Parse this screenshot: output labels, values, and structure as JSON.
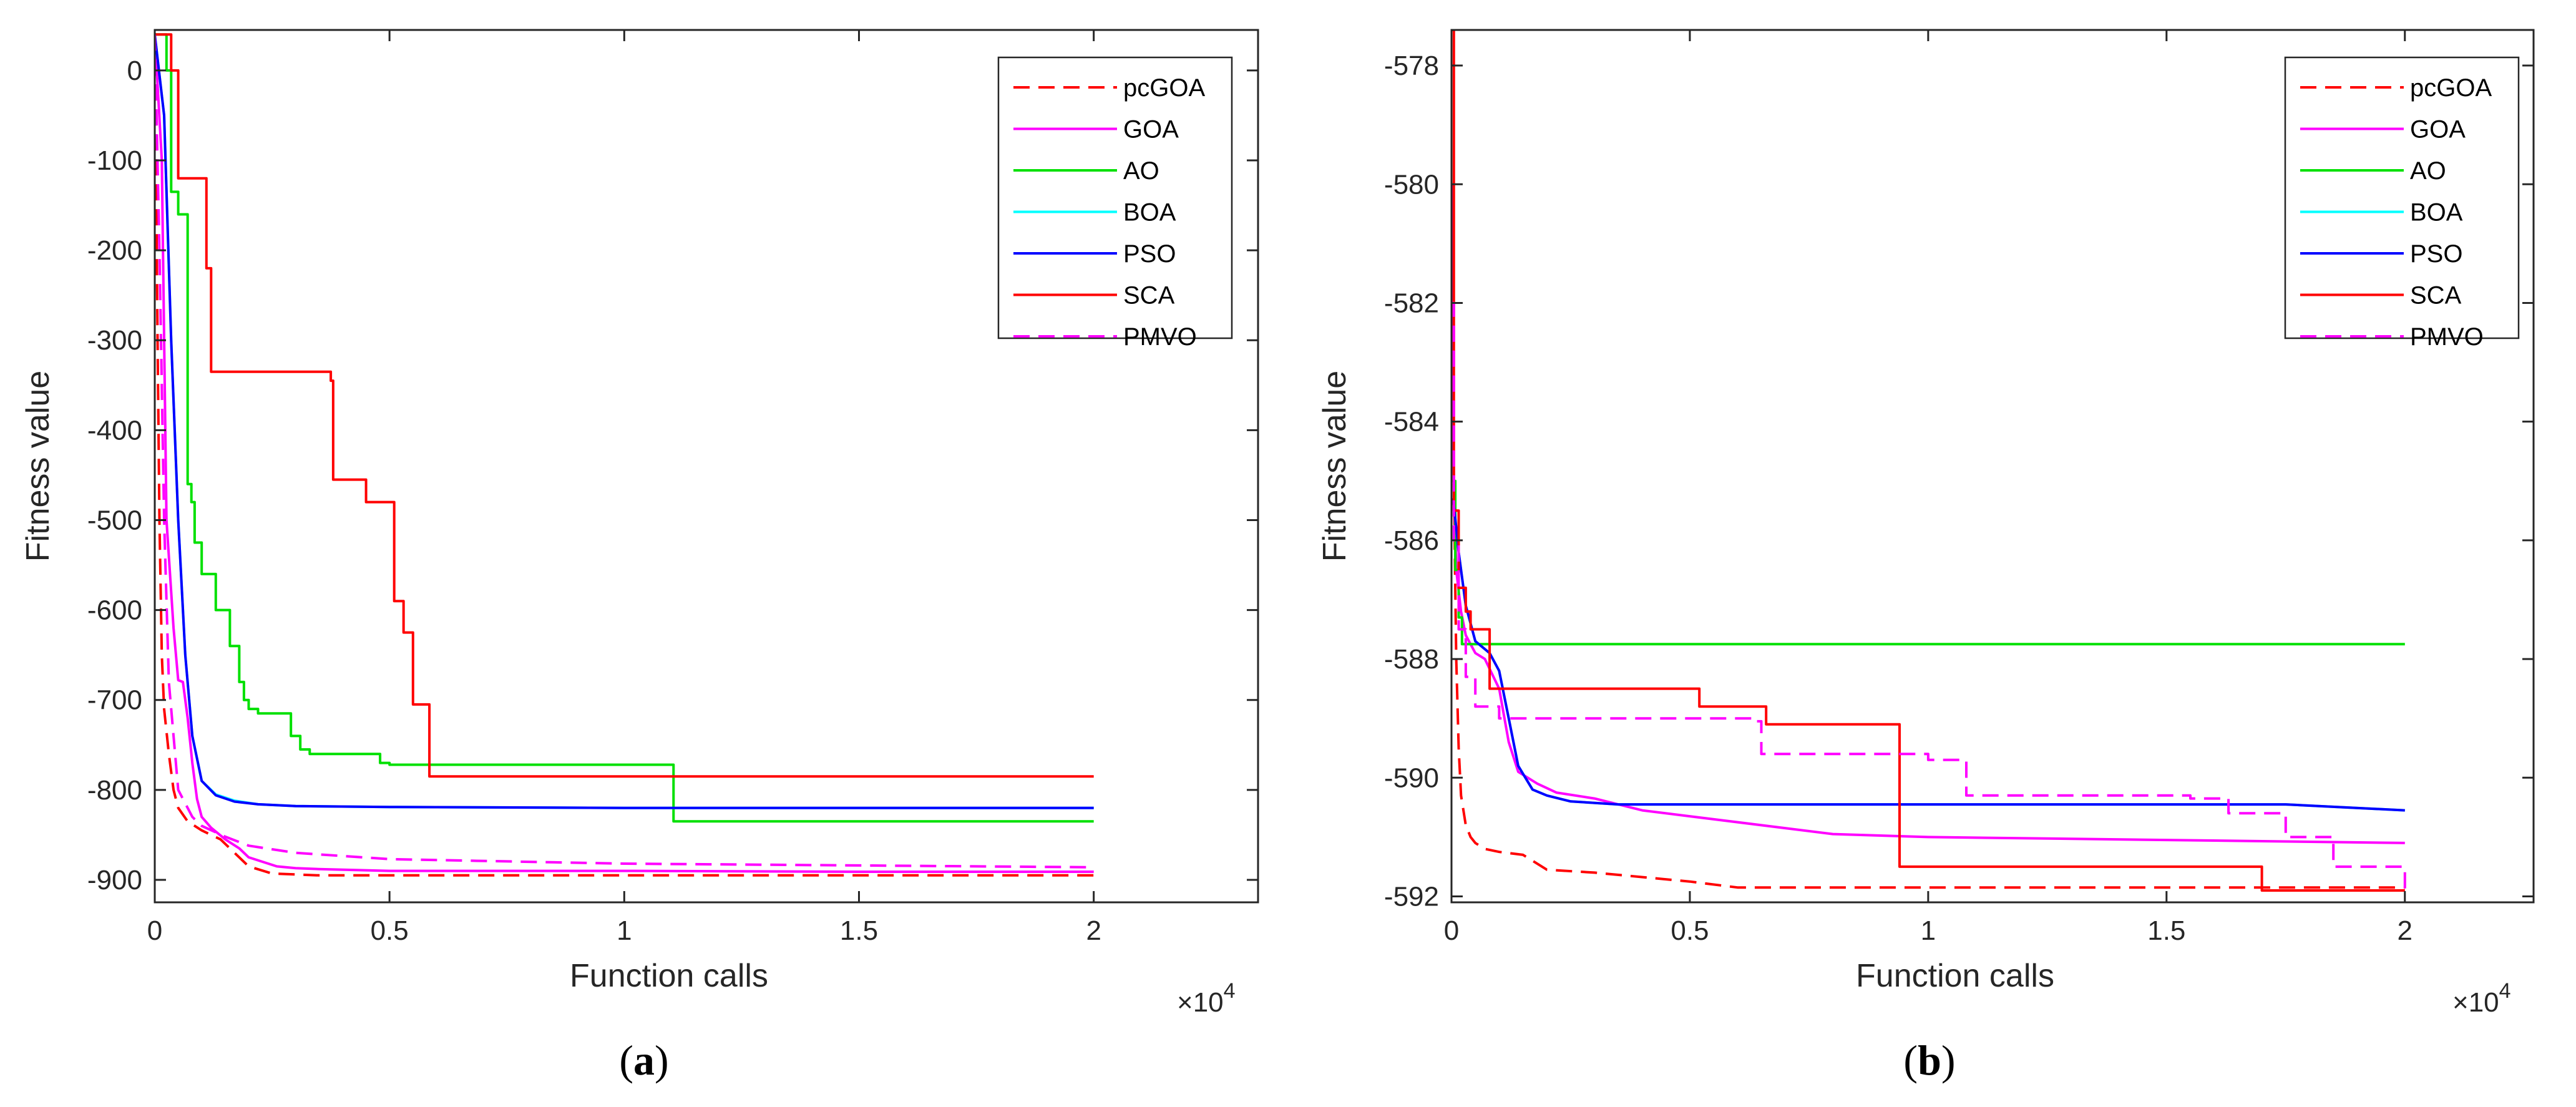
{
  "captions": [
    {
      "open": "(",
      "letter": "a",
      "close": ")"
    },
    {
      "open": "(",
      "letter": "b",
      "close": ")"
    }
  ],
  "chart_data": [
    {
      "type": "line",
      "xlabel": "Function calls",
      "ylabel": "Fitness value",
      "x_multiplier_label": "×10",
      "x_multiplier_exp": "4",
      "xlim": [
        0,
        23500
      ],
      "ylim": [
        -925,
        45
      ],
      "xticks": [
        0,
        5000,
        10000,
        15000,
        20000
      ],
      "xtick_labels": [
        "0",
        "0.5",
        "1",
        "1.5",
        "2"
      ],
      "yticks": [
        0,
        -100,
        -200,
        -300,
        -400,
        -500,
        -600,
        -700,
        -800,
        -900
      ],
      "ytick_labels": [
        "0",
        "-100",
        "-200",
        "-300",
        "-400",
        "-500",
        "-600",
        "-700",
        "-800",
        "-900"
      ],
      "legend_position": "top-right",
      "series": [
        {
          "name": "pcGOA",
          "color": "#ff0000",
          "dash": "dashed",
          "step": false,
          "x": [
            0,
            60,
            100,
            150,
            200,
            300,
            400,
            500,
            700,
            1000,
            1400,
            2000,
            2500,
            3500,
            5000,
            10000,
            15000,
            20000
          ],
          "y": [
            40,
            -300,
            -500,
            -650,
            -710,
            -760,
            -800,
            -820,
            -835,
            -845,
            -855,
            -885,
            -893,
            -895,
            -895,
            -895,
            -895,
            -895
          ]
        },
        {
          "name": "GOA",
          "color": "#ff00ff",
          "dash": "solid",
          "step": false,
          "x": [
            0,
            150,
            250,
            400,
            500,
            600,
            700,
            800,
            900,
            1000,
            1200,
            1500,
            1800,
            2000,
            2300,
            2600,
            3000,
            3500,
            5000,
            10000,
            15000,
            20000
          ],
          "y": [
            40,
            -100,
            -500,
            -620,
            -678,
            -680,
            -720,
            -770,
            -810,
            -830,
            -842,
            -855,
            -865,
            -875,
            -880,
            -885,
            -887,
            -888,
            -890,
            -890,
            -891,
            -891
          ]
        },
        {
          "name": "AO",
          "color": "#00e000",
          "dash": "solid",
          "step": true,
          "x": [
            0,
            250,
            350,
            500,
            700,
            780,
            850,
            1000,
            1300,
            1600,
            1800,
            1900,
            2000,
            2200,
            2500,
            2900,
            3100,
            3300,
            3500,
            4800,
            5000,
            11000,
            11050,
            20000
          ],
          "y": [
            40,
            0,
            -135,
            -160,
            -460,
            -480,
            -525,
            -560,
            -600,
            -640,
            -680,
            -700,
            -710,
            -715,
            -715,
            -740,
            -755,
            -760,
            -760,
            -770,
            -772,
            -772,
            -835,
            -835
          ]
        },
        {
          "name": "BOA",
          "color": "#00ffff",
          "dash": "solid",
          "step": false,
          "x": [
            0,
            200,
            350,
            500,
            650,
            800,
            1000,
            1300,
            1700,
            2200,
            3000,
            5000,
            10000,
            15000,
            20000
          ],
          "y": [
            40,
            -50,
            -300,
            -500,
            -650,
            -740,
            -790,
            -805,
            -812,
            -816,
            -818,
            -819,
            -820,
            -820,
            -820
          ]
        },
        {
          "name": "PSO",
          "color": "#0000ff",
          "dash": "solid",
          "step": false,
          "x": [
            0,
            200,
            350,
            500,
            650,
            800,
            1000,
            1300,
            1700,
            2200,
            3000,
            5000,
            10000,
            15000,
            20000
          ],
          "y": [
            40,
            -50,
            -300,
            -500,
            -650,
            -740,
            -790,
            -806,
            -813,
            -816,
            -818,
            -819,
            -820,
            -820,
            -820
          ]
        },
        {
          "name": "SCA",
          "color": "#ff0000",
          "dash": "solid",
          "step": true,
          "x": [
            0,
            350,
            500,
            1000,
            1100,
            1200,
            3500,
            3750,
            3800,
            4400,
            4500,
            5000,
            5100,
            5300,
            5500,
            5800,
            5850,
            20000
          ],
          "y": [
            40,
            0,
            -120,
            -120,
            -220,
            -335,
            -335,
            -345,
            -455,
            -455,
            -480,
            -480,
            -590,
            -625,
            -705,
            -705,
            -785,
            -785
          ]
        },
        {
          "name": "PMVO",
          "color": "#ff00ff",
          "dash": "dashed",
          "step": false,
          "x": [
            0,
            100,
            200,
            300,
            500,
            800,
            1000,
            1500,
            2000,
            2500,
            3000,
            5000,
            10000,
            15000,
            20000
          ],
          "y": [
            40,
            -200,
            -500,
            -680,
            -800,
            -830,
            -840,
            -852,
            -862,
            -866,
            -870,
            -877,
            -882,
            -884,
            -886
          ]
        }
      ]
    },
    {
      "type": "line",
      "xlabel": "Function calls",
      "ylabel": "Fitness value",
      "x_multiplier_label": "×10",
      "x_multiplier_exp": "4",
      "xlim": [
        0,
        22700
      ],
      "ylim": [
        -592.1,
        -577.4
      ],
      "xticks": [
        0,
        5000,
        10000,
        15000,
        20000
      ],
      "xtick_labels": [
        "0",
        "0.5",
        "1",
        "1.5",
        "2"
      ],
      "yticks": [
        -578,
        -580,
        -582,
        -584,
        -586,
        -588,
        -590,
        -592
      ],
      "ytick_labels": [
        "-578",
        "-580",
        "-582",
        "-584",
        "-586",
        "-588",
        "-590",
        "-592"
      ],
      "legend_position": "top-right",
      "series": [
        {
          "name": "pcGOA",
          "color": "#ff0000",
          "dash": "dashed",
          "step": false,
          "x": [
            0,
            50,
            100,
            150,
            200,
            300,
            400,
            500,
            700,
            1000,
            1500,
            2000,
            3000,
            5000,
            6000,
            10000,
            15000,
            20000
          ],
          "y": [
            -580,
            -585,
            -588,
            -589.5,
            -590.3,
            -590.8,
            -591.0,
            -591.1,
            -591.2,
            -591.25,
            -591.3,
            -591.55,
            -591.6,
            -591.75,
            -591.85,
            -591.85,
            -591.85,
            -591.85
          ]
        },
        {
          "name": "GOA",
          "color": "#ff00ff",
          "dash": "solid",
          "step": false,
          "x": [
            0,
            50,
            100,
            200,
            300,
            500,
            700,
            1000,
            1200,
            1400,
            1800,
            2200,
            3000,
            4000,
            5000,
            7000,
            8000,
            10000,
            15000,
            20000
          ],
          "y": [
            -580,
            -585,
            -586.5,
            -587.2,
            -587.6,
            -587.9,
            -588.0,
            -588.5,
            -589.4,
            -589.9,
            -590.1,
            -590.25,
            -590.35,
            -590.55,
            -590.65,
            -590.85,
            -590.95,
            -591.0,
            -591.05,
            -591.1
          ]
        },
        {
          "name": "AO",
          "color": "#00e000",
          "dash": "solid",
          "step": true,
          "x": [
            0,
            80,
            150,
            220,
            20000
          ],
          "y": [
            -585,
            -586.5,
            -587.3,
            -587.75,
            -587.75
          ]
        },
        {
          "name": "BOA",
          "color": "#00ffff",
          "dash": "solid",
          "step": false,
          "x": [
            0,
            50,
            150,
            300,
            500,
            800,
            1000,
            1200,
            1400,
            1700,
            2000,
            2500,
            3500,
            5000,
            10000,
            15000,
            17500,
            20000
          ],
          "y": [
            -585.3,
            -585.4,
            -586.2,
            -587.1,
            -587.7,
            -587.9,
            -588.2,
            -589.0,
            -589.8,
            -590.2,
            -590.3,
            -590.4,
            -590.45,
            -590.45,
            -590.45,
            -590.45,
            -590.45,
            -590.55
          ]
        },
        {
          "name": "PSO",
          "color": "#0000ff",
          "dash": "solid",
          "step": false,
          "x": [
            0,
            50,
            150,
            300,
            500,
            800,
            1000,
            1200,
            1400,
            1700,
            2000,
            2500,
            3500,
            5000,
            10000,
            15000,
            17500,
            20000
          ],
          "y": [
            -585.3,
            -585.4,
            -586.2,
            -587.1,
            -587.7,
            -587.9,
            -588.2,
            -589.0,
            -589.8,
            -590.2,
            -590.3,
            -590.4,
            -590.45,
            -590.45,
            -590.45,
            -590.45,
            -590.45,
            -590.55
          ]
        },
        {
          "name": "SCA",
          "color": "#ff0000",
          "dash": "solid",
          "step": true,
          "x": [
            0,
            50,
            150,
            300,
            400,
            800,
            5200,
            6600,
            9400,
            17000,
            20000
          ],
          "y": [
            -577.4,
            -585.5,
            -586.8,
            -587.2,
            -587.5,
            -588.5,
            -588.8,
            -589.1,
            -591.5,
            -591.9,
            -591.9
          ]
        },
        {
          "name": "PMVO",
          "color": "#ff00ff",
          "dash": "dashed",
          "step": true,
          "x": [
            0,
            50,
            150,
            300,
            500,
            1000,
            6300,
            6500,
            10000,
            10800,
            15500,
            16300,
            17500,
            18500,
            20000
          ],
          "y": [
            -582,
            -586,
            -587.5,
            -588.3,
            -588.8,
            -589.0,
            -589.05,
            -589.6,
            -589.7,
            -590.3,
            -590.35,
            -590.6,
            -591.0,
            -591.5,
            -591.9
          ]
        }
      ]
    }
  ]
}
